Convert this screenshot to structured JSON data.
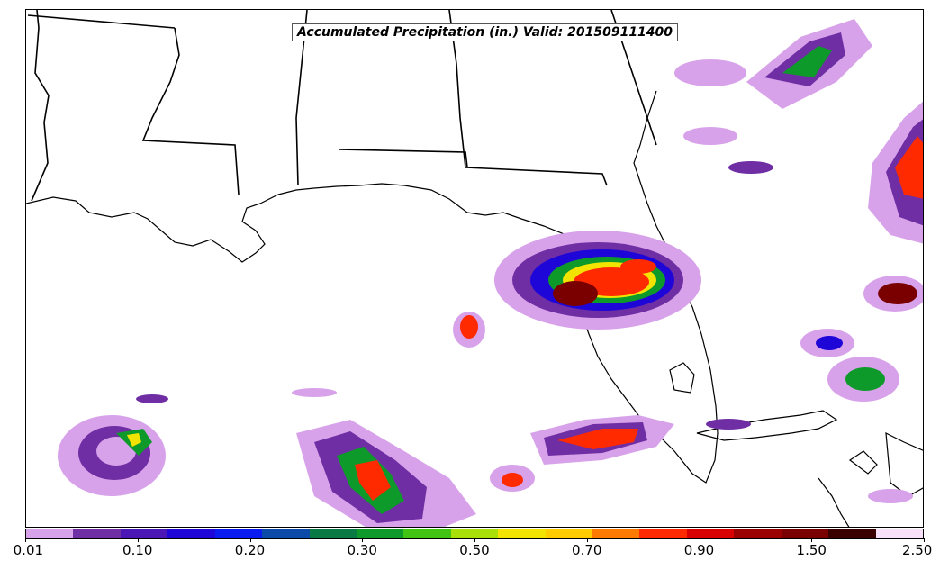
{
  "title": "Accumulated Precipitation (in.) Valid: 201509111400",
  "colorbar": {
    "colors": [
      "#d8a2ea",
      "#6f2ea3",
      "#4a16b5",
      "#1f06d8",
      "#0a1bf0",
      "#0b4aa8",
      "#0a7a45",
      "#0e9a2a",
      "#42c413",
      "#a9e00a",
      "#f2e300",
      "#ffcc00",
      "#ff7a00",
      "#ff2a00",
      "#d80000",
      "#9a0000",
      "#7a0000",
      "#3a0000",
      "#f8e0f8"
    ],
    "tick_labels": [
      "0.01",
      "0.10",
      "0.20",
      "0.30",
      "0.50",
      "0.70",
      "0.90",
      "1.50",
      "2.50"
    ]
  },
  "legend_icon": "colorbar-gradient"
}
